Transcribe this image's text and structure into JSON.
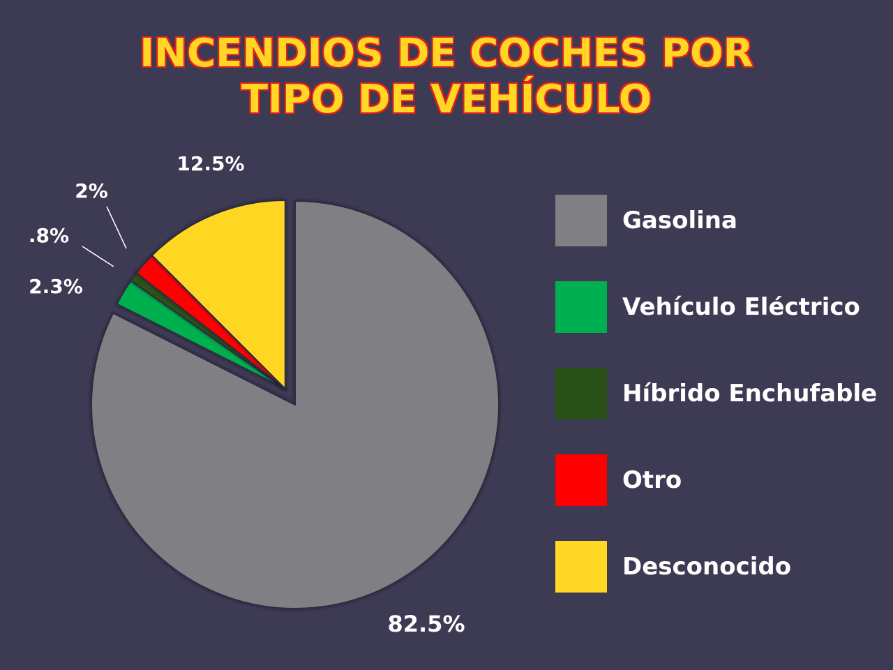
{
  "title": {
    "line1": "INCENDIOS DE COCHES POR",
    "line2": "TIPO DE VEHÍCULO"
  },
  "colors": {
    "background": "#3d3a53",
    "title_fill": "#ffd724",
    "title_outline": "#e61e1e"
  },
  "chart_data": {
    "type": "pie",
    "title": "INCENDIOS DE COCHES POR TIPO DE VEHÍCULO",
    "legend_position": "right",
    "slices": [
      {
        "name": "Gasolina",
        "value": 82.5,
        "label": "82.5%",
        "color": "#808084"
      },
      {
        "name": "Vehículo Eléctrico",
        "value": 2.3,
        "label": "2.3%",
        "color": "#00b050"
      },
      {
        "name": "Híbrido Enchufable",
        "value": 0.8,
        "label": ".8%",
        "color": "#2a5218"
      },
      {
        "name": "Otro",
        "value": 2.0,
        "label": "2%",
        "color": "#ff0000"
      },
      {
        "name": "Desconocido",
        "value": 12.5,
        "label": "12.5%",
        "color": "#ffd724"
      }
    ]
  },
  "legend": [
    {
      "label": "Gasolina",
      "color": "#808084"
    },
    {
      "label": "Vehículo Eléctrico",
      "color": "#00b050"
    },
    {
      "label": "Híbrido Enchufable",
      "color": "#2a5218"
    },
    {
      "label": "Otro",
      "color": "#ff0000"
    },
    {
      "label": "Desconocido",
      "color": "#ffd724"
    }
  ]
}
